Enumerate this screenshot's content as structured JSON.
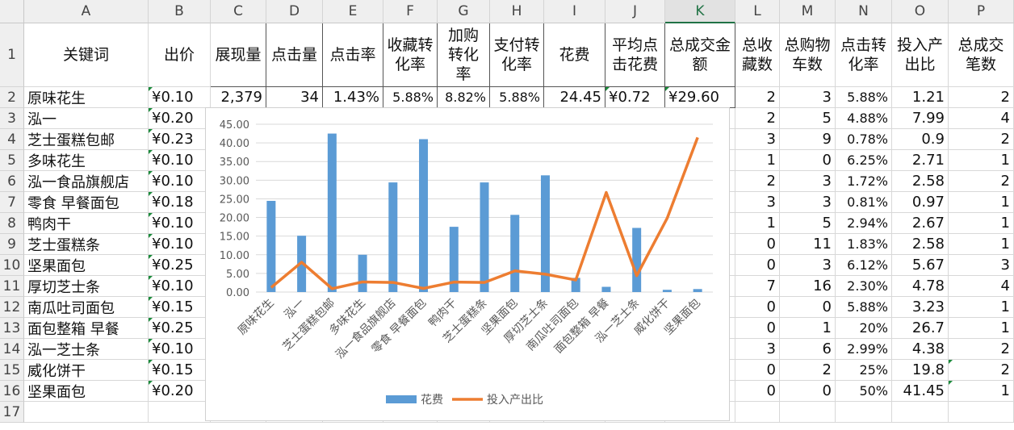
{
  "columns": [
    "A",
    "B",
    "C",
    "D",
    "E",
    "F",
    "G",
    "H",
    "I",
    "J",
    "K",
    "L",
    "M",
    "N",
    "O",
    "P"
  ],
  "selected_column": "K",
  "rows": [
    "1",
    "2",
    "3",
    "4",
    "5",
    "6",
    "7",
    "8",
    "9",
    "10",
    "11",
    "12",
    "13",
    "14",
    "15",
    "16",
    "17"
  ],
  "headers": [
    "关键词",
    "出价",
    "展现量",
    "点击量",
    "点击率",
    "收藏转化率",
    "加购转化率",
    "支付转化率",
    "花费",
    "平均点击花费",
    "总成交金额",
    "总收藏数",
    "总购物车数",
    "点击转化率",
    "投入产出比",
    "总成交笔数"
  ],
  "row2": [
    "原味花生",
    "¥0.10",
    "2,379",
    "34",
    "1.43%",
    "5.88%",
    "8.82%",
    "5.88%",
    "24.45",
    "¥0.72",
    "¥29.60",
    "2",
    "3",
    "5.88%",
    "1.21",
    "2"
  ],
  "keywords": [
    "泓一",
    "芝士蛋糕包邮",
    "多味花生",
    "泓一食品旗舰店",
    "零食 早餐面包",
    "鸭肉干",
    "芝士蛋糕条",
    "坚果面包",
    "厚切芝士条",
    "南瓜吐司面包",
    "面包整箱 早餐",
    "泓一芝士条",
    "威化饼干",
    "坚果面包"
  ],
  "bids": [
    "¥0.20",
    "¥0.23",
    "¥0.10",
    "¥0.10",
    "¥0.18",
    "¥0.10",
    "¥0.10",
    "¥0.25",
    "¥0.10",
    "¥0.15",
    "¥0.25",
    "¥0.10",
    "¥0.15",
    "¥0.20"
  ],
  "fav": [
    "2",
    "3",
    "1",
    "2",
    "3",
    "1",
    "0",
    "0",
    "7",
    "0",
    "0",
    "3",
    "0",
    "0"
  ],
  "cart": [
    "5",
    "9",
    "0",
    "3",
    "3",
    "5",
    "11",
    "3",
    "16",
    "0",
    "1",
    "6",
    "2",
    "0"
  ],
  "ctr_conv": [
    "4.88%",
    "0.78%",
    "6.25%",
    "1.72%",
    "0.81%",
    "2.94%",
    "1.83%",
    "6.12%",
    "2.30%",
    "5.88%",
    "20%",
    "2.99%",
    "25%",
    "50%"
  ],
  "roi": [
    "7.99",
    "0.9",
    "2.71",
    "2.58",
    "0.97",
    "2.67",
    "2.58",
    "5.67",
    "4.78",
    "3.23",
    "26.7",
    "4.38",
    "19.8",
    "41.45"
  ],
  "orders": [
    "4",
    "2",
    "1",
    "2",
    "1",
    "1",
    "1",
    "3",
    "4",
    "1",
    "1",
    "2",
    "2",
    "1"
  ],
  "chart_data": {
    "type": "bar",
    "categories": [
      "原味花生",
      "泓一",
      "芝士蛋糕包邮",
      "多味花生",
      "泓一食品旗舰店",
      "零食 早餐面包",
      "鸭肉干",
      "芝士蛋糕条",
      "坚果面包",
      "厚切芝士条",
      "南瓜吐司面包",
      "面包整箱 早餐",
      "泓一芝士条",
      "威化饼干",
      "坚果面包"
    ],
    "series": [
      {
        "name": "花费",
        "type": "bar",
        "color": "#5b9bd5",
        "values": [
          24.45,
          15.1,
          42.5,
          10.0,
          29.4,
          41.0,
          17.5,
          29.4,
          20.7,
          31.3,
          3.8,
          1.4,
          17.2,
          0.6,
          0.8
        ]
      },
      {
        "name": "投入产出比",
        "type": "line",
        "color": "#ed7d31",
        "values": [
          1.21,
          7.99,
          0.9,
          2.71,
          2.58,
          0.97,
          2.67,
          2.58,
          5.67,
          4.78,
          3.23,
          26.7,
          4.38,
          19.8,
          41.45
        ]
      }
    ],
    "ylim": [
      0,
      45
    ],
    "yticks": [
      "0.00",
      "5.00",
      "10.00",
      "15.00",
      "20.00",
      "25.00",
      "30.00",
      "35.00",
      "40.00",
      "45.00"
    ],
    "grid": true,
    "legend": "bottom"
  }
}
